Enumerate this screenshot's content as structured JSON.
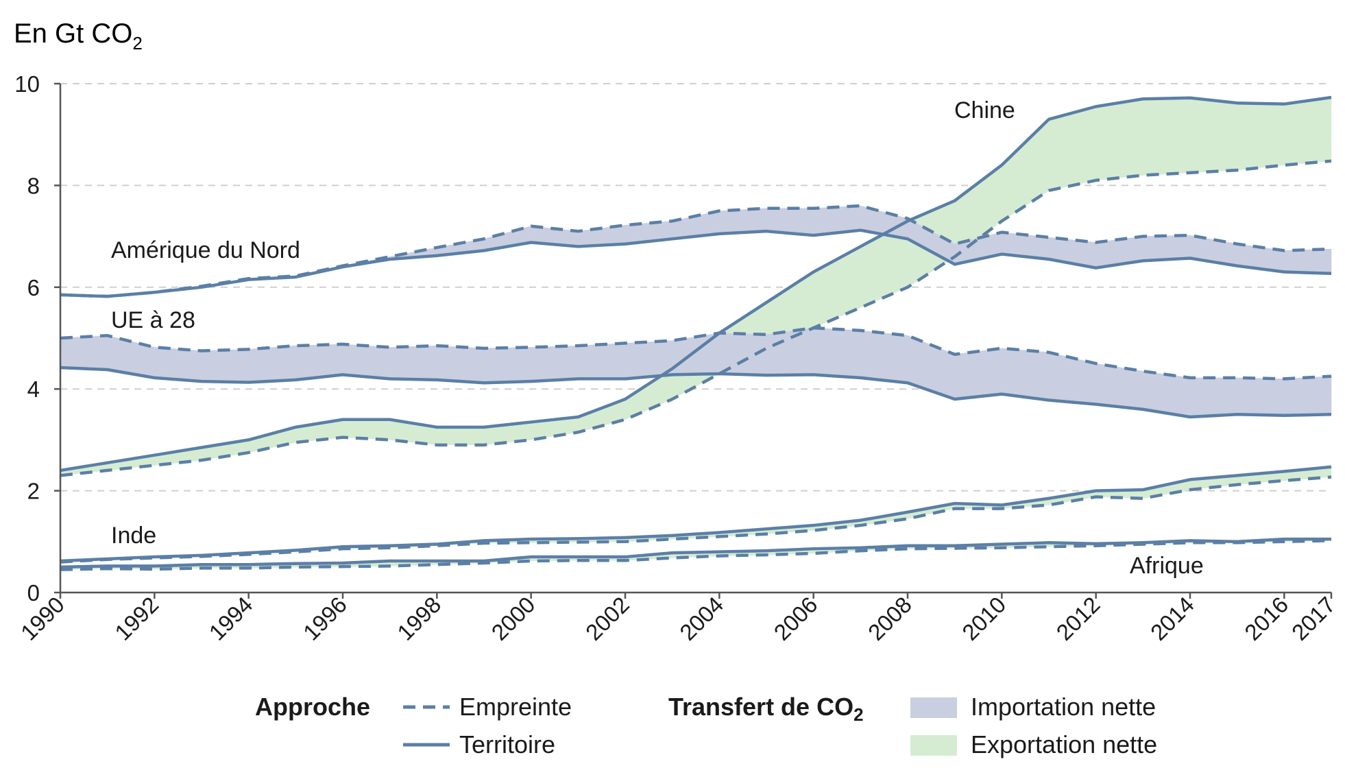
{
  "chart_data": {
    "type": "area",
    "y_unit_label": "En Gt CO",
    "y_unit_sub": "2",
    "ylim": [
      0,
      10
    ],
    "yticks": [
      "0",
      "2",
      "4",
      "6",
      "8",
      "10"
    ],
    "x": [
      1990,
      1991,
      1992,
      1993,
      1994,
      1995,
      1996,
      1997,
      1998,
      1999,
      2000,
      2001,
      2002,
      2003,
      2004,
      2005,
      2006,
      2007,
      2008,
      2009,
      2010,
      2011,
      2012,
      2013,
      2014,
      2015,
      2016,
      2017
    ],
    "xticks": [
      "1990",
      "1992",
      "1994",
      "1996",
      "1998",
      "2000",
      "2002",
      "2004",
      "2006",
      "2008",
      "2010",
      "2012",
      "2014",
      "2016",
      "2017"
    ],
    "grid": true,
    "colors": {
      "line": "#5b7fa6",
      "importation": "#c9cfe0",
      "exportation": "#d5ecd3",
      "axis": "#555555"
    },
    "regions": [
      {
        "name": "Chine",
        "territoire": [
          2.4,
          2.55,
          2.7,
          2.85,
          3.0,
          3.25,
          3.4,
          3.4,
          3.25,
          3.25,
          3.35,
          3.45,
          3.8,
          4.4,
          5.1,
          5.7,
          6.3,
          6.8,
          7.3,
          7.7,
          8.4,
          9.3,
          9.55,
          9.7,
          9.72,
          9.62,
          9.6,
          9.73
        ],
        "empreinte": [
          2.3,
          2.4,
          2.5,
          2.6,
          2.75,
          2.95,
          3.05,
          3.0,
          2.9,
          2.9,
          3.0,
          3.15,
          3.4,
          3.8,
          4.3,
          4.8,
          5.2,
          5.6,
          6.0,
          6.6,
          7.3,
          7.9,
          8.1,
          8.2,
          8.25,
          8.3,
          8.4,
          8.48
        ]
      },
      {
        "name": "Amérique du Nord",
        "territoire": [
          5.85,
          5.82,
          5.9,
          6.0,
          6.15,
          6.2,
          6.4,
          6.55,
          6.62,
          6.72,
          6.88,
          6.8,
          6.85,
          6.95,
          7.05,
          7.1,
          7.02,
          7.12,
          6.95,
          6.45,
          6.65,
          6.55,
          6.38,
          6.52,
          6.57,
          6.42,
          6.3,
          6.27
        ],
        "empreinte": [
          5.85,
          5.82,
          5.9,
          6.02,
          6.17,
          6.22,
          6.42,
          6.6,
          6.78,
          6.95,
          7.2,
          7.1,
          7.22,
          7.3,
          7.5,
          7.55,
          7.55,
          7.6,
          7.35,
          6.85,
          7.08,
          6.98,
          6.88,
          7.0,
          7.02,
          6.85,
          6.72,
          6.75
        ]
      },
      {
        "name": "UE à 28",
        "territoire": [
          4.42,
          4.38,
          4.22,
          4.15,
          4.13,
          4.18,
          4.28,
          4.2,
          4.18,
          4.12,
          4.15,
          4.2,
          4.2,
          4.28,
          4.3,
          4.27,
          4.28,
          4.22,
          4.12,
          3.8,
          3.9,
          3.78,
          3.7,
          3.6,
          3.45,
          3.5,
          3.48,
          3.5
        ],
        "empreinte": [
          5.0,
          5.05,
          4.82,
          4.75,
          4.78,
          4.85,
          4.88,
          4.82,
          4.85,
          4.8,
          4.82,
          4.85,
          4.9,
          4.95,
          5.1,
          5.07,
          5.2,
          5.15,
          5.05,
          4.68,
          4.8,
          4.72,
          4.5,
          4.35,
          4.22,
          4.22,
          4.2,
          4.25
        ]
      },
      {
        "name": "Inde",
        "territoire": [
          0.62,
          0.66,
          0.7,
          0.73,
          0.78,
          0.83,
          0.9,
          0.92,
          0.95,
          1.02,
          1.05,
          1.06,
          1.08,
          1.12,
          1.18,
          1.25,
          1.32,
          1.42,
          1.58,
          1.75,
          1.72,
          1.85,
          2.0,
          2.02,
          2.22,
          2.3,
          2.38,
          2.47
        ],
        "empreinte": [
          0.6,
          0.65,
          0.68,
          0.71,
          0.75,
          0.8,
          0.86,
          0.88,
          0.92,
          0.97,
          0.98,
          0.99,
          1.0,
          1.05,
          1.1,
          1.15,
          1.22,
          1.32,
          1.45,
          1.65,
          1.65,
          1.72,
          1.88,
          1.85,
          2.02,
          2.12,
          2.2,
          2.27
        ]
      },
      {
        "name": "Afrique",
        "territoire": [
          0.5,
          0.52,
          0.52,
          0.55,
          0.55,
          0.57,
          0.58,
          0.62,
          0.62,
          0.62,
          0.7,
          0.7,
          0.7,
          0.78,
          0.8,
          0.82,
          0.86,
          0.88,
          0.92,
          0.92,
          0.95,
          0.98,
          0.96,
          0.98,
          1.02,
          1.0,
          1.05,
          1.05
        ],
        "empreinte": [
          0.45,
          0.47,
          0.46,
          0.48,
          0.48,
          0.5,
          0.51,
          0.52,
          0.55,
          0.58,
          0.62,
          0.63,
          0.63,
          0.68,
          0.72,
          0.74,
          0.77,
          0.82,
          0.86,
          0.87,
          0.88,
          0.9,
          0.92,
          0.95,
          0.98,
          0.98,
          1.0,
          1.02
        ]
      }
    ],
    "legend": {
      "approche_title": "Approche",
      "empreinte_label": "Empreinte",
      "territoire_label": "Territoire",
      "transfert_title": "Transfert de CO",
      "transfert_sub": "2",
      "importation_label": "Importation nette",
      "exportation_label": "Exportation nette"
    }
  }
}
